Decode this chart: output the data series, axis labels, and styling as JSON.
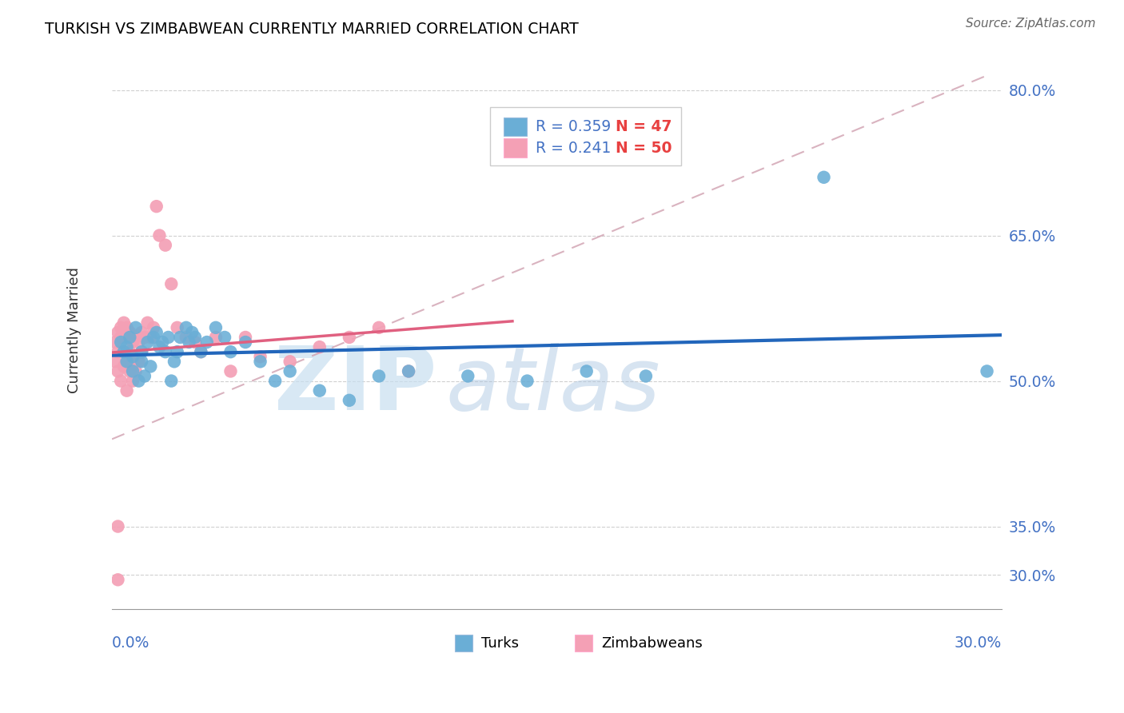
{
  "title": "TURKISH VS ZIMBABWEAN CURRENTLY MARRIED CORRELATION CHART",
  "source": "Source: ZipAtlas.com",
  "ylabel": "Currently Married",
  "ytick_labels": [
    "30.0%",
    "35.0%",
    "50.0%",
    "65.0%",
    "80.0%"
  ],
  "ytick_values": [
    0.3,
    0.35,
    0.5,
    0.65,
    0.8
  ],
  "xmin": 0.0,
  "xmax": 0.3,
  "ymin": 0.265,
  "ymax": 0.84,
  "legend_turks_r": "R = 0.359",
  "legend_turks_n": "N = 47",
  "legend_zimb_r": "R = 0.241",
  "legend_zimb_n": "N = 50",
  "r_color": "#4472c4",
  "n_color": "#e84040",
  "turks_color": "#6aaed6",
  "zimb_color": "#f4a0b5",
  "turks_line_color": "#2266bb",
  "zimb_line_color": "#e06080",
  "dash_color": "#d0a0b0",
  "grid_color": "#d0d0d0",
  "turks_scatter_x": [
    0.003,
    0.004,
    0.005,
    0.005,
    0.006,
    0.007,
    0.007,
    0.008,
    0.009,
    0.01,
    0.01,
    0.011,
    0.012,
    0.013,
    0.014,
    0.015,
    0.016,
    0.017,
    0.018,
    0.019,
    0.02,
    0.021,
    0.022,
    0.023,
    0.025,
    0.026,
    0.027,
    0.028,
    0.03,
    0.032,
    0.035,
    0.038,
    0.04,
    0.045,
    0.05,
    0.055,
    0.06,
    0.07,
    0.08,
    0.09,
    0.1,
    0.12,
    0.14,
    0.16,
    0.18,
    0.24,
    0.295
  ],
  "turks_scatter_y": [
    0.54,
    0.53,
    0.52,
    0.535,
    0.545,
    0.51,
    0.525,
    0.555,
    0.5,
    0.52,
    0.53,
    0.505,
    0.54,
    0.515,
    0.545,
    0.55,
    0.535,
    0.54,
    0.53,
    0.545,
    0.5,
    0.52,
    0.53,
    0.545,
    0.555,
    0.54,
    0.55,
    0.545,
    0.53,
    0.54,
    0.555,
    0.545,
    0.53,
    0.54,
    0.52,
    0.5,
    0.51,
    0.49,
    0.48,
    0.505,
    0.51,
    0.505,
    0.5,
    0.51,
    0.505,
    0.71,
    0.51
  ],
  "zimb_scatter_x": [
    0.001,
    0.001,
    0.002,
    0.002,
    0.002,
    0.003,
    0.003,
    0.003,
    0.004,
    0.004,
    0.004,
    0.005,
    0.005,
    0.005,
    0.005,
    0.006,
    0.006,
    0.006,
    0.007,
    0.007,
    0.007,
    0.008,
    0.008,
    0.009,
    0.009,
    0.01,
    0.01,
    0.011,
    0.012,
    0.013,
    0.014,
    0.015,
    0.016,
    0.018,
    0.02,
    0.022,
    0.025,
    0.028,
    0.03,
    0.035,
    0.04,
    0.045,
    0.05,
    0.06,
    0.07,
    0.08,
    0.09,
    0.1,
    0.002,
    0.002
  ],
  "zimb_scatter_y": [
    0.54,
    0.52,
    0.55,
    0.53,
    0.51,
    0.555,
    0.545,
    0.5,
    0.56,
    0.53,
    0.515,
    0.555,
    0.545,
    0.52,
    0.49,
    0.55,
    0.53,
    0.51,
    0.54,
    0.52,
    0.5,
    0.545,
    0.51,
    0.54,
    0.52,
    0.55,
    0.53,
    0.545,
    0.56,
    0.545,
    0.555,
    0.68,
    0.65,
    0.64,
    0.6,
    0.555,
    0.545,
    0.54,
    0.53,
    0.545,
    0.51,
    0.545,
    0.525,
    0.52,
    0.535,
    0.545,
    0.555,
    0.51,
    0.35,
    0.295
  ],
  "watermark_zip_color": "#c8dff0",
  "watermark_atlas_color": "#a8c4e0"
}
